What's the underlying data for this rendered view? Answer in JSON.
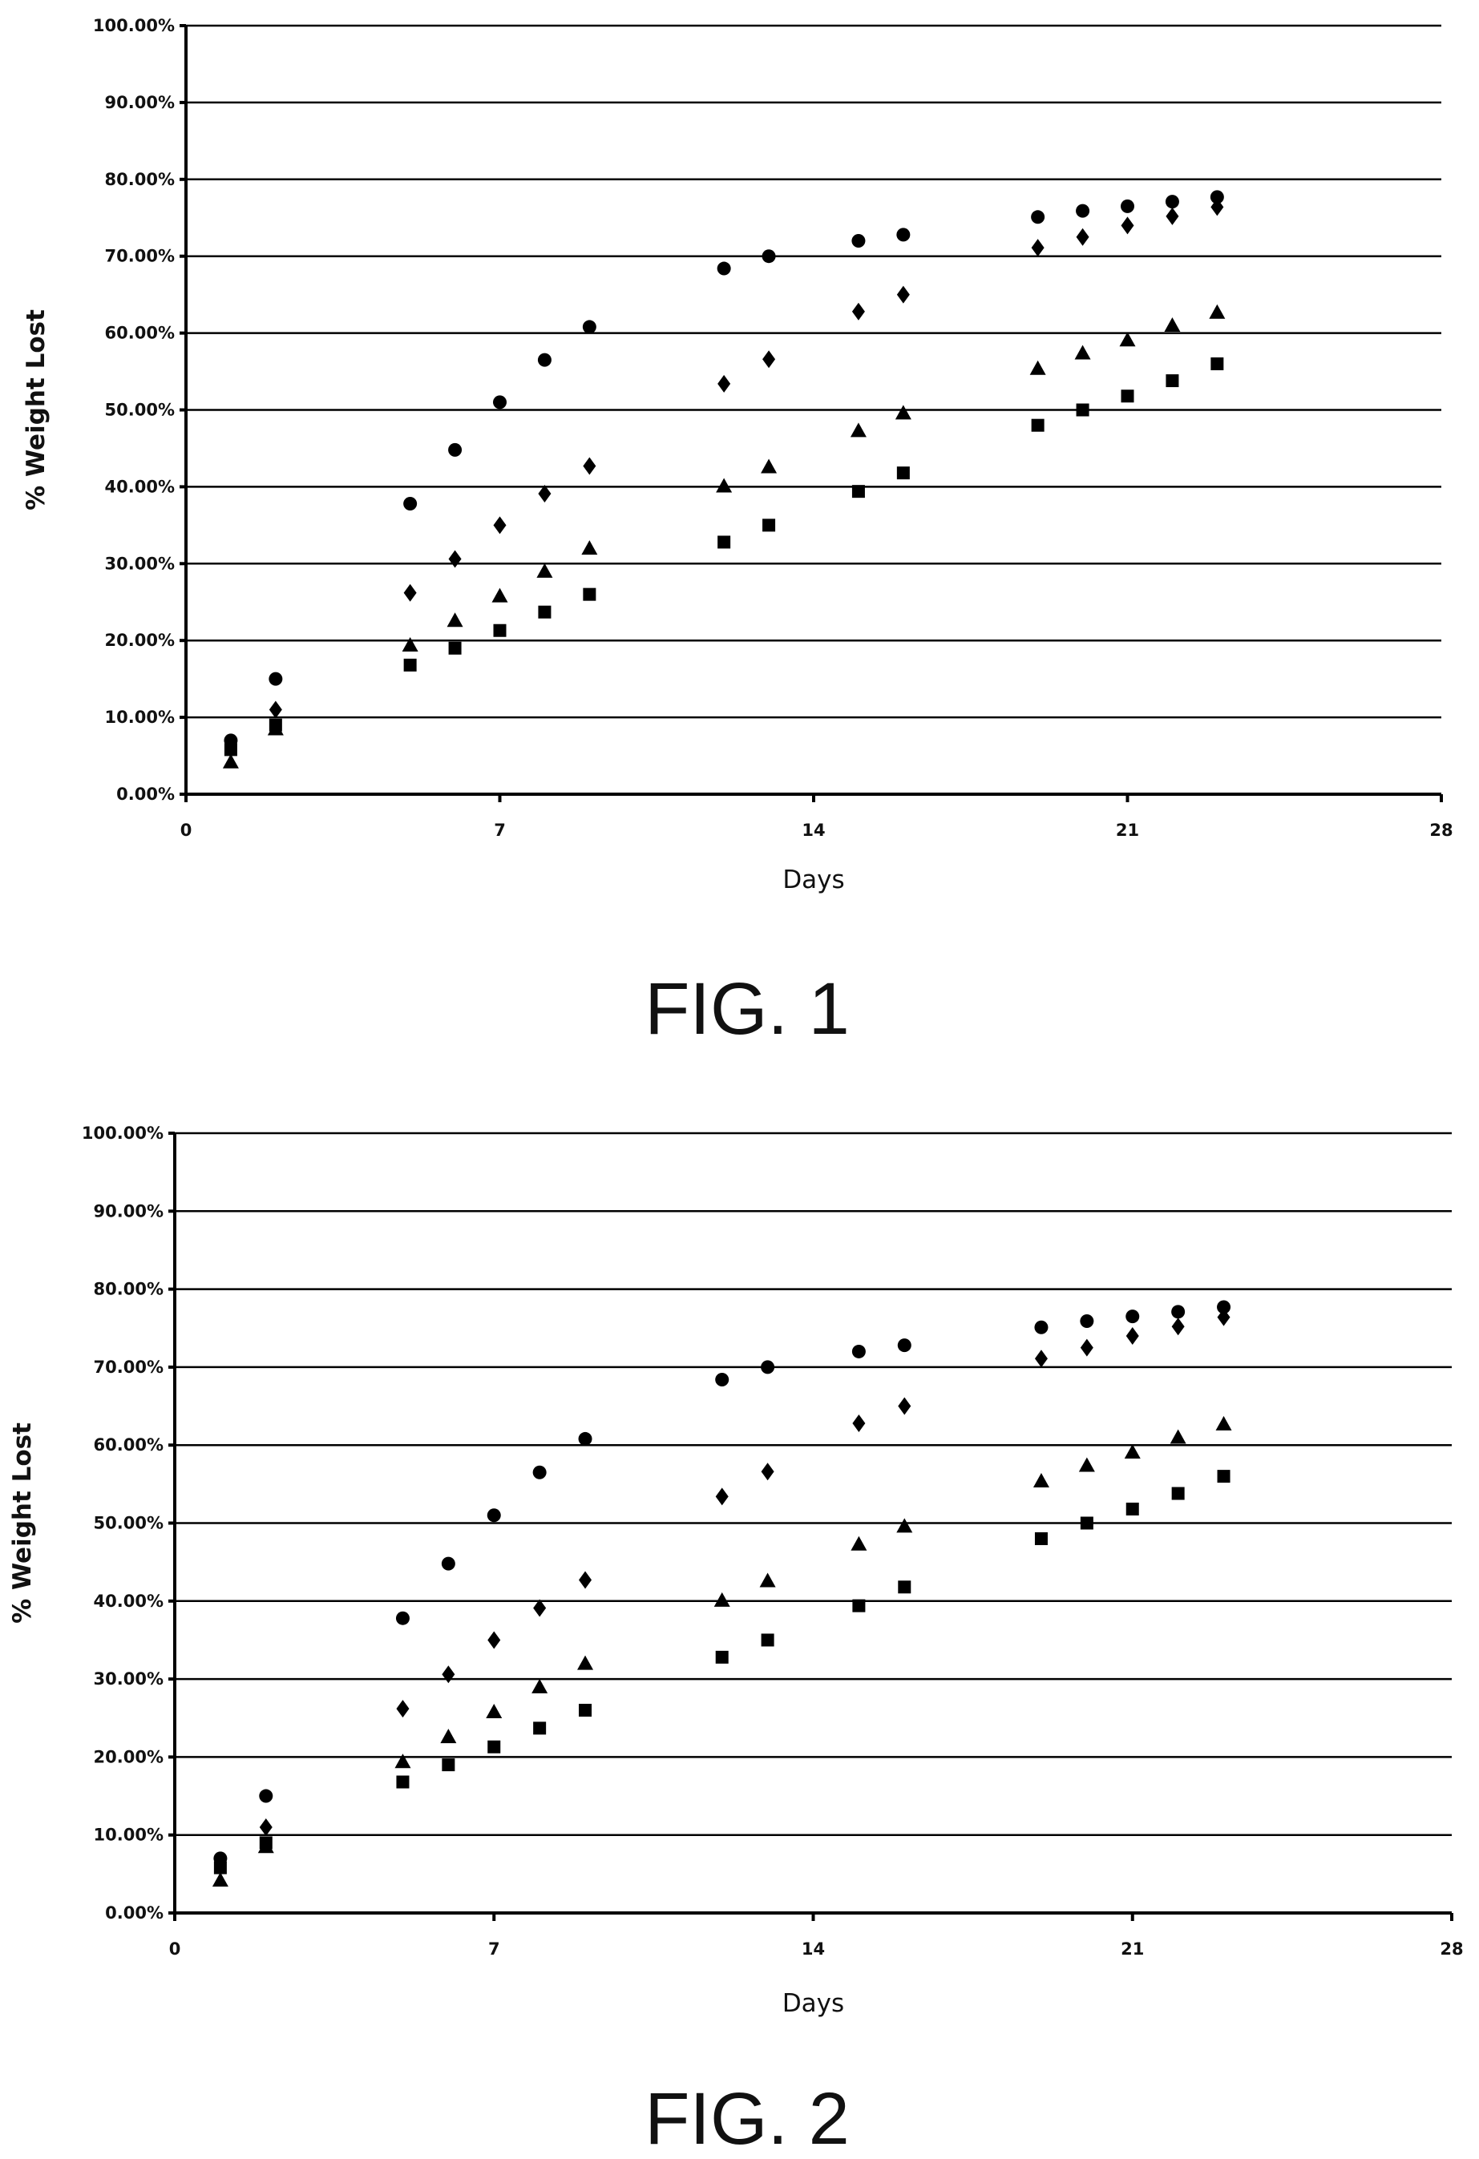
{
  "figures": [
    {
      "caption": "FIG. 1",
      "chart_data": {
        "type": "scatter",
        "title": "",
        "xlabel": "Days",
        "ylabel": "% Weight Lost",
        "xlim": [
          0,
          28
        ],
        "ylim": [
          0,
          100
        ],
        "x_ticks": [
          "0",
          "7",
          "14",
          "21",
          "28"
        ],
        "y_ticks": [
          "0.00%",
          "10.00%",
          "20.00%",
          "30.00%",
          "40.00%",
          "50.00%",
          "60.00%",
          "70.00%",
          "80.00%",
          "90.00%",
          "100.00%"
        ],
        "grid": "horizontal",
        "legend": "none",
        "series": [
          {
            "marker": "circle",
            "x": [
              1,
              2,
              5,
              6,
              7,
              8,
              9,
              12,
              13,
              15,
              16,
              19,
              20,
              21,
              22,
              23
            ],
            "y": [
              7.0,
              15.0,
              37.8,
              44.8,
              51.0,
              56.5,
              60.8,
              68.4,
              70.0,
              72.0,
              72.8,
              75.1,
              75.9,
              76.5,
              77.1,
              77.7
            ]
          },
          {
            "marker": "diamond",
            "x": [
              1,
              2,
              5,
              6,
              7,
              8,
              9,
              12,
              13,
              15,
              16,
              19,
              20,
              21,
              22,
              23
            ],
            "y": [
              6.5,
              11.0,
              26.2,
              30.6,
              35.0,
              39.1,
              42.7,
              53.4,
              56.6,
              62.8,
              65.0,
              71.1,
              72.5,
              74.0,
              75.2,
              76.4
            ]
          },
          {
            "marker": "triangle",
            "x": [
              1,
              2,
              5,
              6,
              7,
              8,
              9,
              12,
              13,
              15,
              16,
              19,
              20,
              21,
              22,
              23
            ],
            "y": [
              4.2,
              8.5,
              19.4,
              22.6,
              25.8,
              29.0,
              32.0,
              40.1,
              42.6,
              47.3,
              49.6,
              55.4,
              57.4,
              59.1,
              61.0,
              62.7
            ]
          },
          {
            "marker": "square",
            "x": [
              1,
              2,
              5,
              6,
              7,
              8,
              9,
              12,
              13,
              15,
              16,
              19,
              20,
              21,
              22,
              23
            ],
            "y": [
              5.8,
              9.0,
              16.8,
              19.0,
              21.3,
              23.7,
              26.0,
              32.8,
              35.0,
              39.4,
              41.8,
              48.0,
              50.0,
              51.8,
              53.8,
              56.0
            ]
          }
        ]
      }
    },
    {
      "caption": "FIG. 2",
      "chart_data": {
        "type": "scatter",
        "title": "",
        "xlabel": "Days",
        "ylabel": "% Weight Lost",
        "xlim": [
          0,
          28
        ],
        "ylim": [
          0,
          100
        ],
        "x_ticks": [
          "0",
          "7",
          "14",
          "21",
          "28"
        ],
        "y_ticks": [
          "0.00%",
          "10.00%",
          "20.00%",
          "30.00%",
          "40.00%",
          "50.00%",
          "60.00%",
          "70.00%",
          "80.00%",
          "90.00%",
          "100.00%"
        ],
        "grid": "horizontal",
        "legend": "none",
        "series": [
          {
            "marker": "circle",
            "x": [
              1,
              2,
              5,
              6,
              7,
              8,
              9,
              12,
              13,
              15,
              16,
              19,
              20,
              21,
              22,
              23
            ],
            "y": [
              7.0,
              15.0,
              37.8,
              44.8,
              51.0,
              56.5,
              60.8,
              68.4,
              70.0,
              72.0,
              72.8,
              75.1,
              75.9,
              76.5,
              77.1,
              77.7
            ]
          },
          {
            "marker": "diamond",
            "x": [
              1,
              2,
              5,
              6,
              7,
              8,
              9,
              12,
              13,
              15,
              16,
              19,
              20,
              21,
              22,
              23
            ],
            "y": [
              6.5,
              11.0,
              26.2,
              30.6,
              35.0,
              39.1,
              42.7,
              53.4,
              56.6,
              62.8,
              65.0,
              71.1,
              72.5,
              74.0,
              75.2,
              76.4
            ]
          },
          {
            "marker": "triangle",
            "x": [
              1,
              2,
              5,
              6,
              7,
              8,
              9,
              12,
              13,
              15,
              16,
              19,
              20,
              21,
              22,
              23
            ],
            "y": [
              4.2,
              8.5,
              19.4,
              22.6,
              25.8,
              29.0,
              32.0,
              40.1,
              42.6,
              47.3,
              49.6,
              55.4,
              57.4,
              59.1,
              61.0,
              62.7
            ]
          },
          {
            "marker": "square",
            "x": [
              1,
              2,
              5,
              6,
              7,
              8,
              9,
              12,
              13,
              15,
              16,
              19,
              20,
              21,
              22,
              23
            ],
            "y": [
              5.8,
              9.0,
              16.8,
              19.0,
              21.3,
              23.7,
              26.0,
              32.8,
              35.0,
              39.4,
              41.8,
              48.0,
              50.0,
              51.8,
              53.8,
              56.0
            ]
          }
        ]
      }
    }
  ]
}
